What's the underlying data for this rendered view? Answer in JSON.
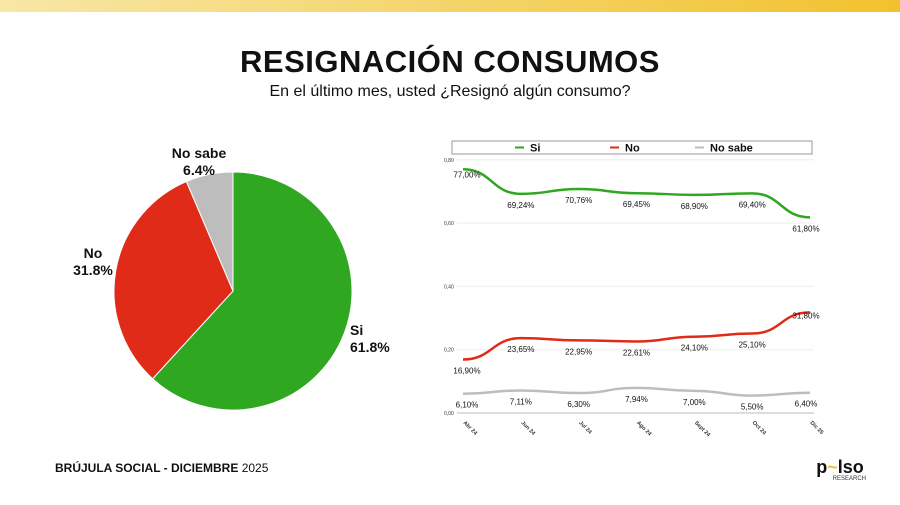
{
  "header": {
    "title": "RESIGNACIÓN CONSUMOS",
    "subtitle": "En el último mes, usted ¿Resignó algún consumo?"
  },
  "footer": {
    "brand": "BRÚJULA SOCIAL - DICIEMBRE",
    "year": "2025"
  },
  "logo": {
    "text": "pulso",
    "sub": "RESEARCH"
  },
  "colors": {
    "si": "#2fa720",
    "no": "#e02b18",
    "nosabe": "#bdbdbd",
    "accent": "#f2c12e"
  },
  "chart_data": [
    {
      "type": "pie",
      "slices": [
        {
          "label": "Si",
          "value": 61.8,
          "display": "61.8%"
        },
        {
          "label": "No",
          "value": 31.8,
          "display": "31.8%"
        },
        {
          "label": "No sabe",
          "value": 6.4,
          "display": "6.4%"
        }
      ]
    },
    {
      "type": "line",
      "categories": [
        "Abr 24",
        "Jun 24",
        "Jul 24",
        "Ago 24",
        "Sept 24",
        "Oct 24",
        "Dic 25"
      ],
      "ylim": [
        0,
        0.8
      ],
      "yticks": [
        "0,00",
        "0,20",
        "0,40",
        "0,60",
        "0,80"
      ],
      "legend": "top",
      "series": [
        {
          "name": "Si",
          "values": [
            0.77,
            0.6924,
            0.7076,
            0.6945,
            0.689,
            0.694,
            0.618
          ],
          "labels": [
            "77,00%",
            "69,24%",
            "70,76%",
            "69,45%",
            "68,90%",
            "69,40%",
            "61,80%"
          ]
        },
        {
          "name": "No",
          "values": [
            0.169,
            0.2365,
            0.2295,
            0.2261,
            0.241,
            0.251,
            0.318
          ],
          "labels": [
            "16,90%",
            "23,65%",
            "22,95%",
            "22,61%",
            "24,10%",
            "25,10%",
            "31,80%"
          ]
        },
        {
          "name": "No sabe",
          "values": [
            0.061,
            0.0711,
            0.063,
            0.0794,
            0.07,
            0.055,
            0.064
          ],
          "labels": [
            "6,10%",
            "7,11%",
            "6,30%",
            "7,94%",
            "7,00%",
            "5,50%",
            "6,40%"
          ]
        }
      ]
    }
  ]
}
